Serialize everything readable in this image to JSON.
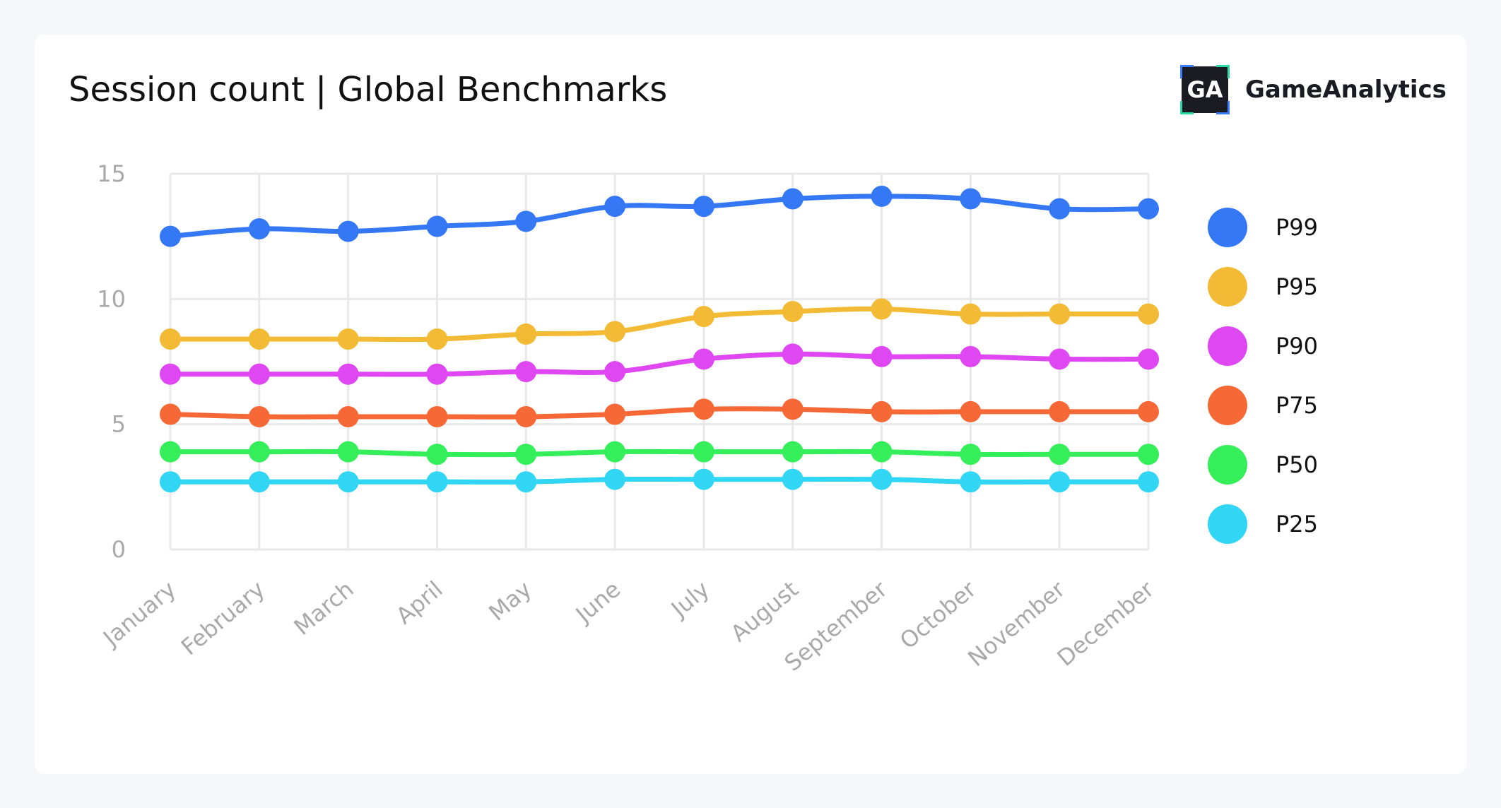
{
  "title": "Session count | Global Benchmarks",
  "brand": {
    "logo_text": "GA",
    "name": "GameAnalytics"
  },
  "chart_data": {
    "type": "line",
    "title": "Session count | Global Benchmarks",
    "xlabel": "",
    "ylabel": "",
    "ylim": [
      0,
      15
    ],
    "yticks": [
      0,
      5,
      10,
      15
    ],
    "grid": true,
    "legend_position": "right",
    "categories": [
      "January",
      "February",
      "March",
      "April",
      "May",
      "June",
      "July",
      "August",
      "September",
      "October",
      "November",
      "December"
    ],
    "series": [
      {
        "name": "P99",
        "color": "#3478f6",
        "values": [
          12.5,
          12.8,
          12.7,
          12.9,
          13.1,
          13.7,
          13.7,
          14.0,
          14.1,
          14.0,
          13.6,
          13.6
        ]
      },
      {
        "name": "P95",
        "color": "#f3bb35",
        "values": [
          8.4,
          8.4,
          8.4,
          8.4,
          8.6,
          8.7,
          9.3,
          9.5,
          9.6,
          9.4,
          9.4,
          9.4
        ]
      },
      {
        "name": "P90",
        "color": "#de47f2",
        "values": [
          7.0,
          7.0,
          7.0,
          7.0,
          7.1,
          7.1,
          7.6,
          7.8,
          7.7,
          7.7,
          7.6,
          7.6
        ]
      },
      {
        "name": "P75",
        "color": "#f66835",
        "values": [
          5.4,
          5.3,
          5.3,
          5.3,
          5.3,
          5.4,
          5.6,
          5.6,
          5.5,
          5.5,
          5.5,
          5.5
        ]
      },
      {
        "name": "P50",
        "color": "#34ee5a",
        "values": [
          3.9,
          3.9,
          3.9,
          3.8,
          3.8,
          3.9,
          3.9,
          3.9,
          3.9,
          3.8,
          3.8,
          3.8
        ]
      },
      {
        "name": "P25",
        "color": "#30d6f4",
        "values": [
          2.7,
          2.7,
          2.7,
          2.7,
          2.7,
          2.8,
          2.8,
          2.8,
          2.8,
          2.7,
          2.7,
          2.7
        ]
      }
    ]
  }
}
